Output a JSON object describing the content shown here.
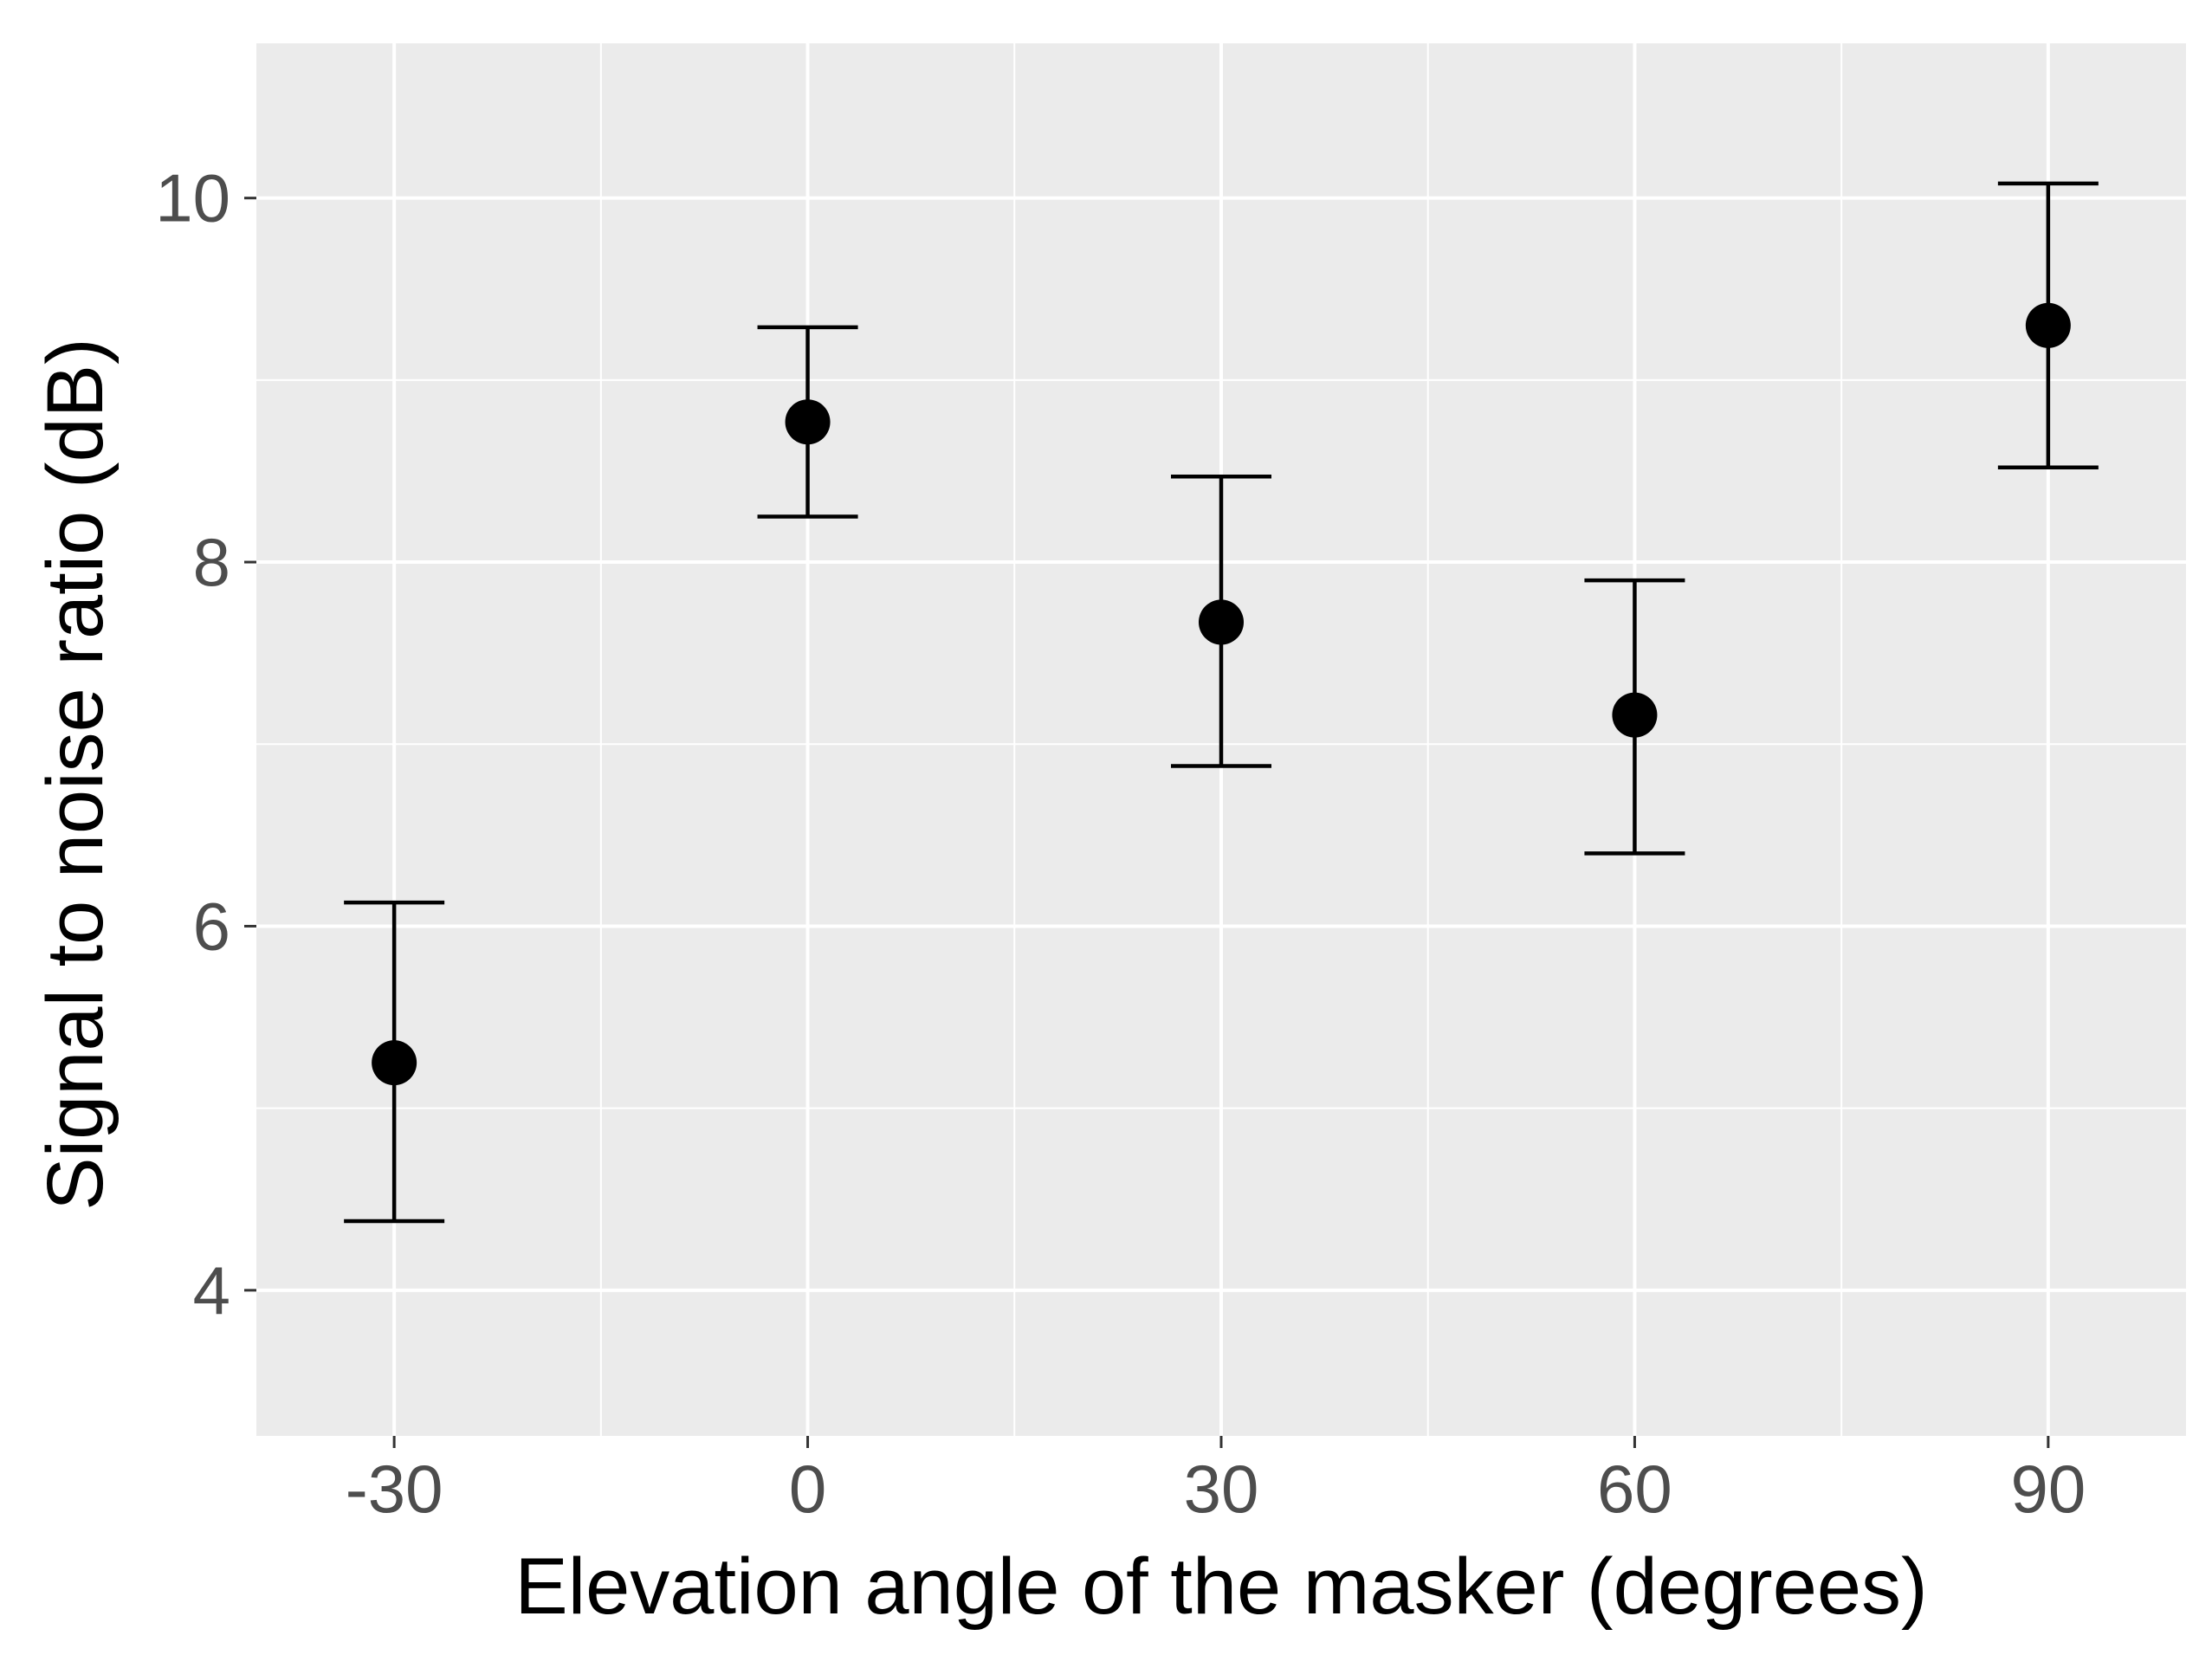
{
  "chart_data": {
    "type": "scatter",
    "error_bars": true,
    "x": [
      -30,
      0,
      30,
      60,
      90
    ],
    "y": [
      5.25,
      8.77,
      7.67,
      7.16,
      9.3
    ],
    "y_lower": [
      4.38,
      8.25,
      6.88,
      6.4,
      8.52
    ],
    "y_upper": [
      6.13,
      9.29,
      8.47,
      7.9,
      10.08
    ],
    "xlabel": "Elevation angle of the masker (degrees)",
    "ylabel": "Signal to noise ratio (dB)",
    "x_ticks": [
      "-30",
      "0",
      "30",
      "60",
      "90"
    ],
    "y_ticks": [
      "4",
      "6",
      "8",
      "10"
    ],
    "xlim": [
      -40,
      100
    ],
    "ylim": [
      3.2,
      10.85
    ],
    "grid": true,
    "legend": false,
    "colors": {
      "panel_background": "#ebebeb",
      "grid_line": "#ffffff",
      "point": "#000000",
      "tick_label": "#4d4d4d",
      "axis_title": "#000000"
    }
  }
}
